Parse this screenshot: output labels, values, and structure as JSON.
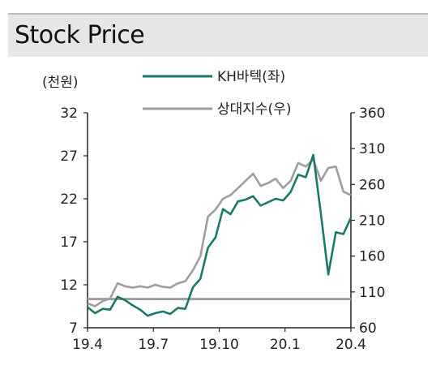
{
  "header": {
    "title": "Stock Price"
  },
  "chart_data": {
    "type": "line",
    "left_unit": "(천원)",
    "x_ticks": [
      "19.4",
      "19.7",
      "19.10",
      "20.1",
      "20.4"
    ],
    "y_left": {
      "min": 7,
      "max": 32,
      "ticks": [
        "32",
        "27",
        "22",
        "17",
        "12",
        "7"
      ]
    },
    "y_right": {
      "min": 60,
      "max": 360,
      "ticks": [
        "360",
        "310",
        "260",
        "210",
        "160",
        "110",
        "60"
      ]
    },
    "reference_line_right": 100,
    "series": [
      {
        "name": "KH바텍(좌)",
        "axis": "left",
        "color": "#1a7a6a",
        "x": [
          "19.4",
          "19.4",
          "19.5",
          "19.5",
          "19.5",
          "19.6",
          "19.6",
          "19.6",
          "19.7",
          "19.7",
          "19.7",
          "19.8",
          "19.8",
          "19.8",
          "19.9",
          "19.9",
          "19.9",
          "19.10",
          "19.10",
          "19.10",
          "19.11",
          "19.11",
          "19.11",
          "19.12",
          "19.12",
          "19.12",
          "20.1",
          "20.1",
          "20.1",
          "20.2",
          "20.2",
          "20.2",
          "20.3",
          "20.3",
          "20.3",
          "20.4"
        ],
        "values": [
          9.4,
          8.7,
          9.2,
          9.1,
          10.6,
          10.2,
          9.6,
          9.1,
          8.4,
          8.7,
          8.9,
          8.6,
          9.3,
          9.2,
          11.7,
          12.7,
          16.3,
          17.5,
          20.8,
          20.2,
          21.7,
          21.9,
          22.3,
          21.2,
          21.6,
          22.0,
          21.8,
          22.8,
          24.8,
          24.5,
          27.1,
          20.3,
          13.2,
          18.1,
          17.9,
          19.8
        ]
      },
      {
        "name": "상대지수(우)",
        "axis": "right",
        "color": "#9e9e9e",
        "x": [
          "19.4",
          "19.4",
          "19.5",
          "19.5",
          "19.5",
          "19.6",
          "19.6",
          "19.6",
          "19.7",
          "19.7",
          "19.7",
          "19.8",
          "19.8",
          "19.8",
          "19.9",
          "19.9",
          "19.9",
          "19.10",
          "19.10",
          "19.10",
          "19.11",
          "19.11",
          "19.11",
          "19.12",
          "19.12",
          "19.12",
          "20.1",
          "20.1",
          "20.1",
          "20.2",
          "20.2",
          "20.2",
          "20.3",
          "20.3",
          "20.3",
          "20.4"
        ],
        "values": [
          94,
          90,
          97,
          101,
          122,
          118,
          116,
          118,
          116,
          120,
          117,
          116,
          122,
          125,
          140,
          160,
          215,
          225,
          240,
          245,
          255,
          265,
          275,
          258,
          262,
          268,
          255,
          265,
          290,
          285,
          295,
          265,
          283,
          285,
          250,
          245
        ]
      }
    ]
  }
}
